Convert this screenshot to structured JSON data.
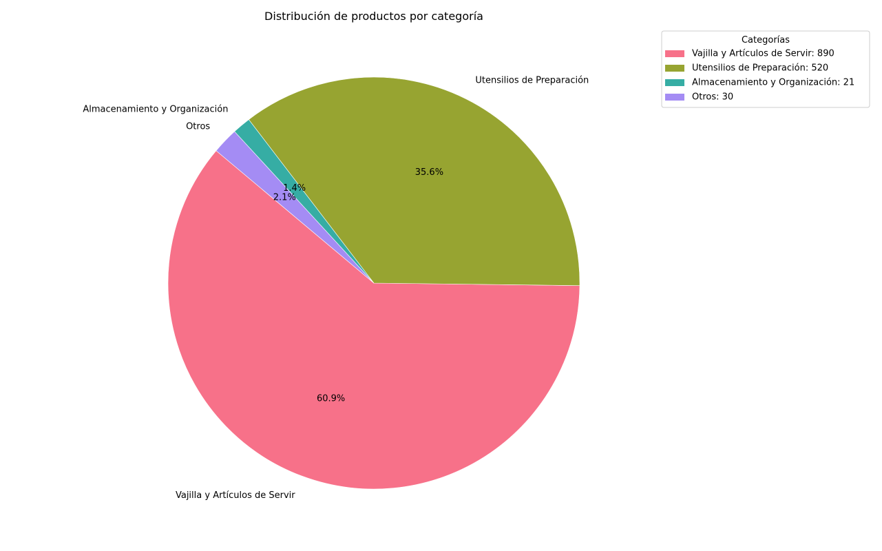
{
  "chart_data": {
    "type": "pie",
    "title": "Distribución de productos por categoría",
    "slices": [
      {
        "label": "Vajilla y Artículos de Servir",
        "value": 890,
        "percent_label": "60.9%",
        "legend_label": "Vajilla y Artículos de Servir: 890",
        "color": "#f77189"
      },
      {
        "label": "Utensilios de Preparación",
        "value": 520,
        "percent_label": "35.6%",
        "legend_label": "Utensilios de Preparación: 520",
        "color": "#97a431"
      },
      {
        "label": "Almacenamiento y Organización",
        "value": 21,
        "percent_label": "1.4%",
        "legend_label": "Almacenamiento y Organización: 21",
        "color": "#36ada4"
      },
      {
        "label": "Otros",
        "value": 30,
        "percent_label": "2.1%",
        "legend_label": "Otros: 30",
        "color": "#a48cf4"
      }
    ],
    "start_angle_deg": 140,
    "direction": "counterclockwise",
    "legend": {
      "title": "Categorías",
      "placement": "top-right"
    }
  }
}
